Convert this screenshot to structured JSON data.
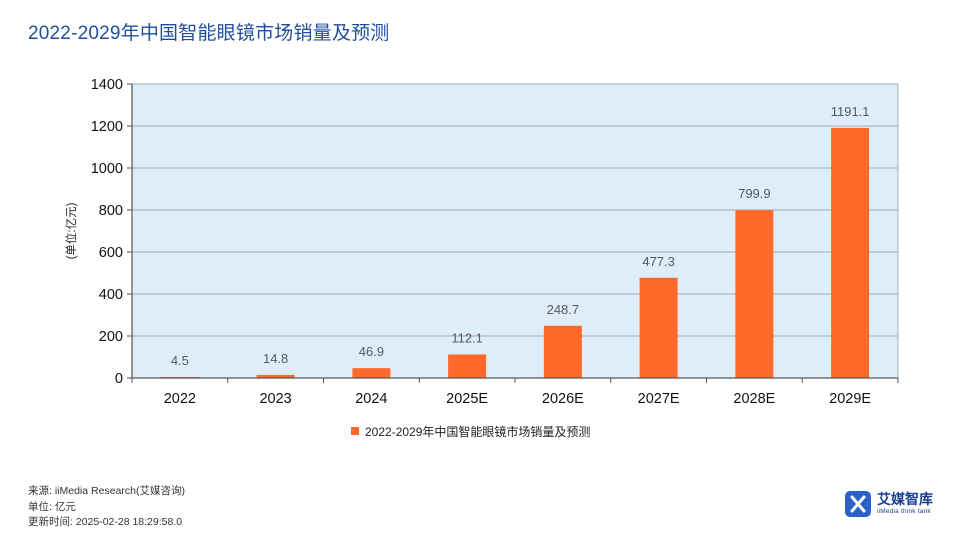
{
  "page": {
    "title": "2022-2029年中国智能眼镜市场销量及预测"
  },
  "chart_data": {
    "type": "bar",
    "categories": [
      "2022",
      "2023",
      "2024",
      "2025E",
      "2026E",
      "2027E",
      "2028E",
      "2029E"
    ],
    "series": [
      {
        "name": "2022-2029年中国智能眼镜市场销量及预测",
        "values": [
          4.5,
          14.8,
          46.9,
          112.1,
          248.7,
          477.3,
          799.9,
          1191.1
        ],
        "labels": [
          "4.5",
          "14.8",
          "46.9",
          "112.1",
          "248.7",
          "477.3",
          "799.9",
          "1191.1"
        ]
      }
    ],
    "ylabel": "(单位:亿元)",
    "ylim": [
      0,
      1400
    ],
    "yticks": [
      0,
      200,
      400,
      600,
      800,
      1000,
      1200,
      1400
    ],
    "grid": true,
    "legend_position": "bottom",
    "colors": {
      "bar": "#ff6a2b",
      "plot_background": "#ddeefa",
      "gridline": "#a9a9a9",
      "value_label": "#595959"
    }
  },
  "footer": {
    "source": "来源: iiMedia Research(艾媒咨询)",
    "unit": "单位: 亿元",
    "updated": "更新时间: 2025-02-28 18:29:58.0"
  },
  "logo": {
    "cn": "艾媒智库",
    "en": "iiMedia think tank"
  }
}
